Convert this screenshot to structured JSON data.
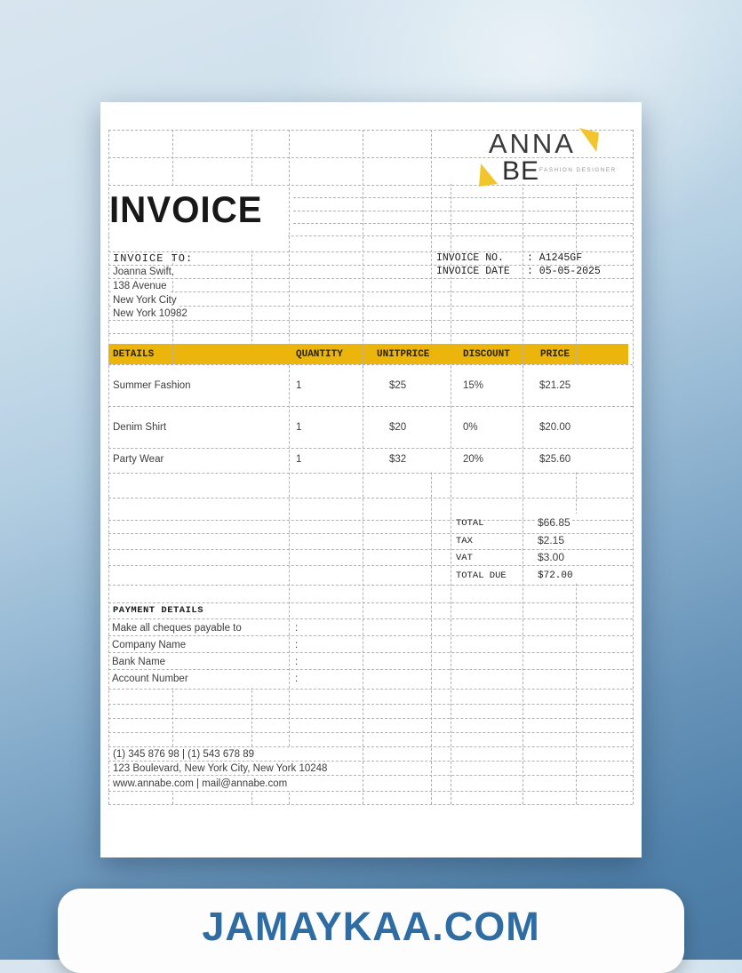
{
  "brand": {
    "name_line1": "ANNA",
    "name_line2": "BE",
    "tagline": "FASHION DESIGNER",
    "triangle_color": "#F3C52D"
  },
  "title": "INVOICE",
  "bill_to": {
    "label": "INVOICE TO:",
    "lines": [
      "Joanna Swift,",
      "138 Avenue",
      "New York City",
      "New York 10982"
    ]
  },
  "meta": {
    "no_label": "INVOICE NO.",
    "no_value": ": A1245GF",
    "date_label": "INVOICE DATE",
    "date_value": ": 05-05-2025"
  },
  "items": {
    "header_bg": "#EBB50C",
    "headers": [
      "DETAILS",
      "QUANTITY",
      "UNITPRICE",
      "DISCOUNT",
      "PRICE"
    ],
    "rows": [
      [
        "Summer Fashion",
        "1",
        "$25",
        "15%",
        "$21.25"
      ],
      [
        "Denim Shirt",
        "1",
        "$20",
        "0%",
        "$20.00"
      ],
      [
        "Party Wear",
        "1",
        "$32",
        "20%",
        "$25.60"
      ]
    ]
  },
  "totals": [
    {
      "label": "TOTAL",
      "value": "$66.85"
    },
    {
      "label": "TAX",
      "value": "$2.15"
    },
    {
      "label": "VAT",
      "value": "$3.00"
    },
    {
      "label": "TOTAL DUE",
      "value": "$72.00"
    }
  ],
  "payment": {
    "heading": "PAYMENT DETAILS",
    "rows": [
      {
        "label": "Make all cheques payable to",
        "sep": ":"
      },
      {
        "label": "Company Name",
        "sep": ":"
      },
      {
        "label": "Bank Name",
        "sep": ":"
      },
      {
        "label": "Account Number",
        "sep": ":"
      }
    ]
  },
  "footer": {
    "lines": [
      "(1) 345 876 98 | (1) 543 678 89",
      "123 Boulevard, New York City, New York 10248",
      "www.annabe.com | mail@annabe.com"
    ]
  },
  "watermark": {
    "text": "JAMAYKAA.COM",
    "color": "#2E6DA4"
  }
}
